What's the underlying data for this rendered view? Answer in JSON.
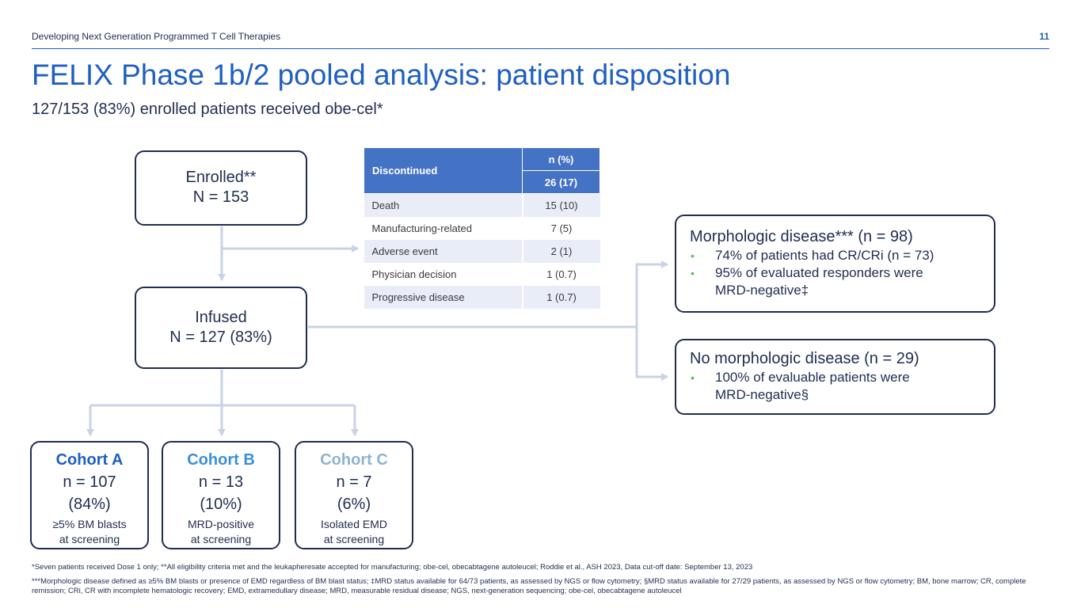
{
  "header": {
    "title": "Developing Next Generation Programmed T Cell Therapies",
    "page_number": "11"
  },
  "title": "FELIX Phase 1b/2 pooled analysis: patient disposition",
  "subtitle": "127/153 (83%) enrolled patients received obe-cel*",
  "enrolled": {
    "label": "Enrolled**",
    "count": "N = 153"
  },
  "infused": {
    "label": "Infused",
    "count": "N = 127 (83%)"
  },
  "discontinued_table": {
    "label": "Discontinued",
    "col_header": "n (%)",
    "total": "26 (17)",
    "rows": [
      {
        "reason": "Death",
        "value": "15 (10)"
      },
      {
        "reason": "Manufacturing-related",
        "value": "7 (5)"
      },
      {
        "reason": "Adverse event",
        "value": "2 (1)"
      },
      {
        "reason": "Physician decision",
        "value": "1 (0.7)"
      },
      {
        "reason": "Progressive disease",
        "value": "1 (0.7)"
      }
    ]
  },
  "cohorts": [
    {
      "name": "Cohort A",
      "n": "n = 107",
      "pct": "(84%)",
      "desc1": "≥5% BM blasts",
      "desc2": "at screening",
      "color": "#1f5fc2"
    },
    {
      "name": "Cohort B",
      "n": "n = 13",
      "pct": "(10%)",
      "desc1": "MRD-positive",
      "desc2": "at screening",
      "color": "#3a8fd9"
    },
    {
      "name": "Cohort C",
      "n": "n = 7",
      "pct": "(6%)",
      "desc1": "Isolated EMD",
      "desc2": "at screening",
      "color": "#8fb3cf"
    }
  ],
  "morphologic": {
    "title": "Morphologic disease*** (n = 98)",
    "bullet1": "74% of patients had CR/CRi (n = 73)",
    "bullet2_line1": "95% of evaluated responders were",
    "bullet2_line2": "MRD-negative‡"
  },
  "no_morphologic": {
    "title": "No morphologic disease (n = 29)",
    "bullet1_line1": "100% of evaluable patients were",
    "bullet1_line2": "MRD-negative§"
  },
  "bullet_char": "•",
  "footnotes": {
    "line1": "*Seven patients received Dose 1 only; **All eligibility criteria met and the leukapheresate accepted for manufacturing; obe-cel, obecabtagene autoleucel; Roddie et al., ASH 2023, Data cut-off date: September 13, 2023",
    "line2": "***Morphologic disease defined as ≥5% BM blasts or presence of EMD regardless of BM blast status; ‡MRD status available for 64/73 patients, as assessed by NGS or flow cytometry; §MRD status available for 27/29 patients, as assessed by NGS or flow cytometry; BM, bone marrow; CR, complete remission; CRi, CR with incomplete hematologic recovery; EMD, extramedullary disease; MRD, measurable residual disease; NGS, next-generation sequencing; obe-cel, obecabtagene autoleucel"
  },
  "colors": {
    "brand_blue": "#1f5fc2",
    "navy": "#1f2d4f",
    "table_header": "#4472c4",
    "connector": "#c9d3e6",
    "bullet_green": "#5cb85c"
  }
}
